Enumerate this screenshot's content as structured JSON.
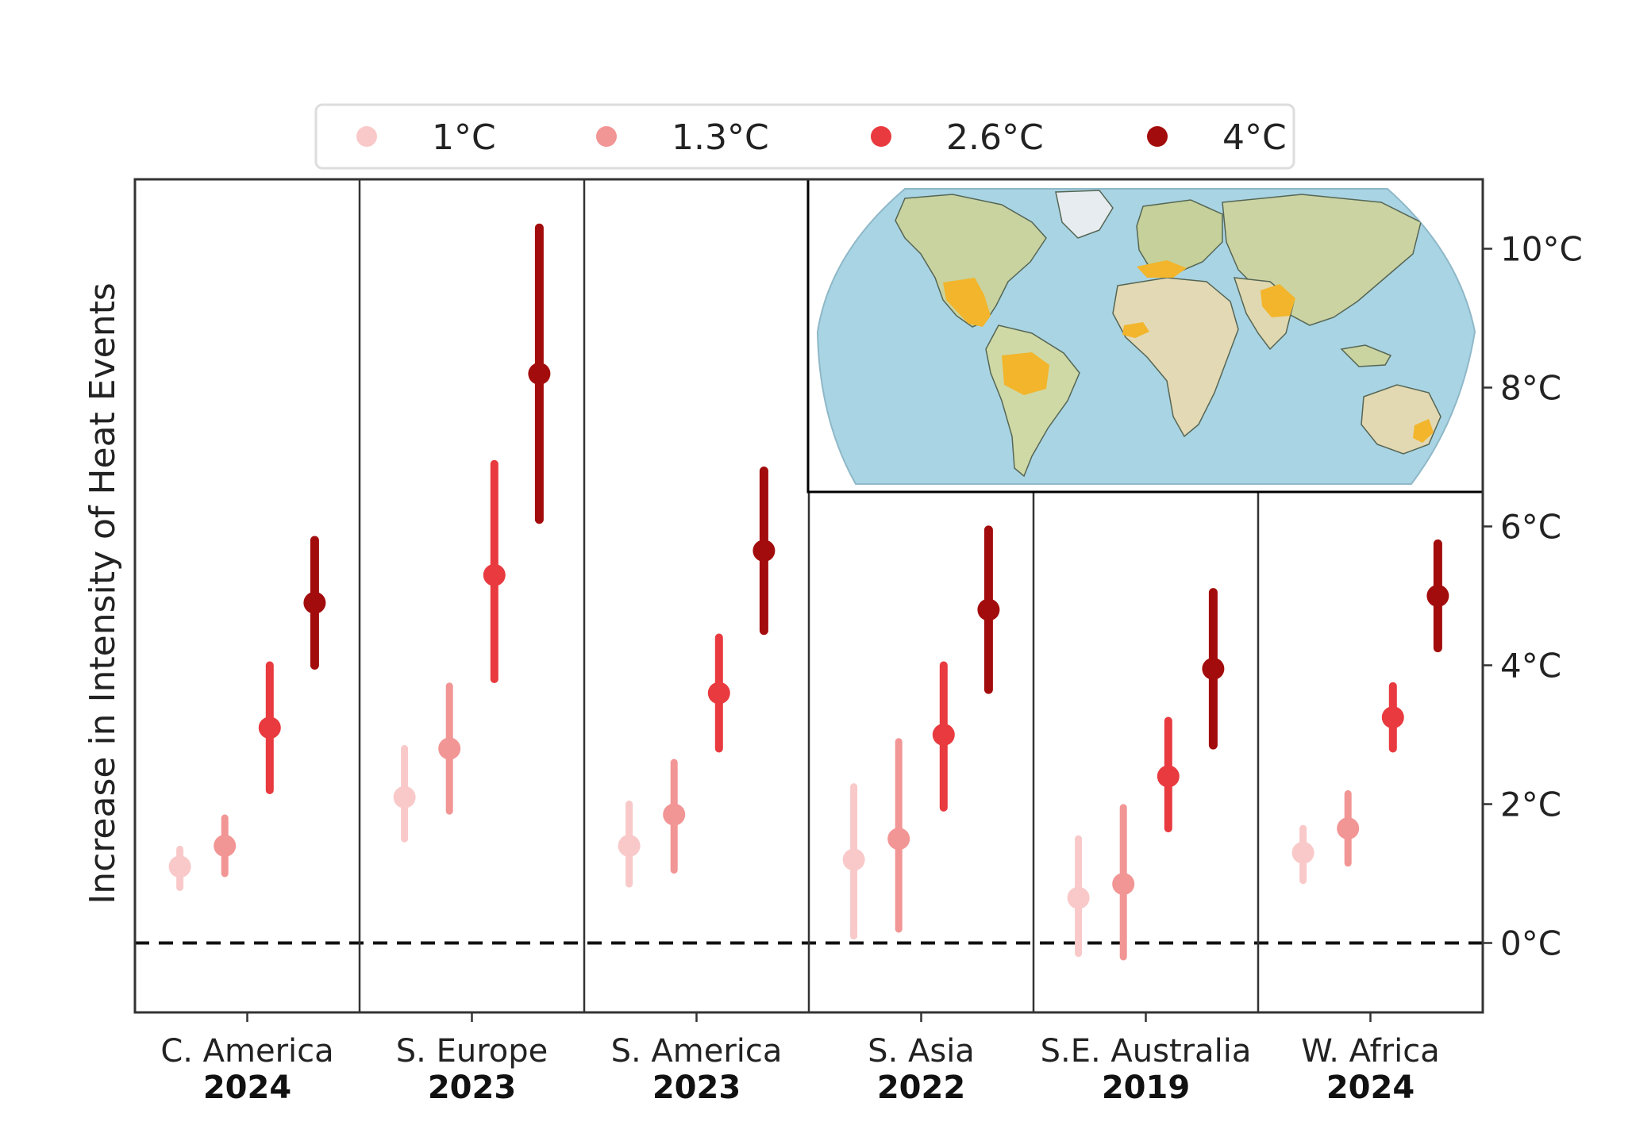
{
  "chart_data": {
    "type": "errorbar",
    "title": "",
    "ylabel": "Increase in Intensity of Heat Events",
    "xlabel": "",
    "ylim": [
      -1,
      11
    ],
    "yticks": [
      0,
      2,
      4,
      6,
      8,
      10
    ],
    "ytick_labels": [
      "0°C",
      "2°C",
      "4°C",
      "6°C",
      "8°C",
      "10°C"
    ],
    "reference_line": 0,
    "legend_position": "top-center",
    "inset": "world-map-highlighting-event-regions",
    "series": [
      {
        "name": "1°C",
        "color": "#f9c9c9"
      },
      {
        "name": "1.3°C",
        "color": "#f29595"
      },
      {
        "name": "2.6°C",
        "color": "#e83a3f"
      },
      {
        "name": "4°C",
        "color": "#a30c0c"
      }
    ],
    "categories": [
      {
        "region": "C. America",
        "year": "2024",
        "values": [
          {
            "mid": 1.1,
            "low": 0.8,
            "high": 1.35
          },
          {
            "mid": 1.4,
            "low": 1.0,
            "high": 1.8
          },
          {
            "mid": 3.1,
            "low": 2.2,
            "high": 4.0
          },
          {
            "mid": 4.9,
            "low": 4.0,
            "high": 5.8
          }
        ]
      },
      {
        "region": "S. Europe",
        "year": "2023",
        "values": [
          {
            "mid": 2.1,
            "low": 1.5,
            "high": 2.8
          },
          {
            "mid": 2.8,
            "low": 1.9,
            "high": 3.7
          },
          {
            "mid": 5.3,
            "low": 3.8,
            "high": 6.9
          },
          {
            "mid": 8.2,
            "low": 6.1,
            "high": 10.3
          }
        ]
      },
      {
        "region": "S. America",
        "year": "2023",
        "values": [
          {
            "mid": 1.4,
            "low": 0.85,
            "high": 2.0
          },
          {
            "mid": 1.85,
            "low": 1.05,
            "high": 2.6
          },
          {
            "mid": 3.6,
            "low": 2.8,
            "high": 4.4
          },
          {
            "mid": 5.65,
            "low": 4.5,
            "high": 6.8
          }
        ]
      },
      {
        "region": "S. Asia",
        "year": "2022",
        "values": [
          {
            "mid": 1.2,
            "low": 0.1,
            "high": 2.25
          },
          {
            "mid": 1.5,
            "low": 0.2,
            "high": 2.9
          },
          {
            "mid": 3.0,
            "low": 1.95,
            "high": 4.0
          },
          {
            "mid": 4.8,
            "low": 3.65,
            "high": 5.95
          }
        ]
      },
      {
        "region": "S.E. Australia",
        "year": "2019",
        "values": [
          {
            "mid": 0.65,
            "low": -0.15,
            "high": 1.5
          },
          {
            "mid": 0.85,
            "low": -0.2,
            "high": 1.95
          },
          {
            "mid": 2.4,
            "low": 1.65,
            "high": 3.2
          },
          {
            "mid": 3.95,
            "low": 2.85,
            "high": 5.05
          }
        ]
      },
      {
        "region": "W. Africa",
        "year": "2024",
        "values": [
          {
            "mid": 1.3,
            "low": 0.9,
            "high": 1.65
          },
          {
            "mid": 1.65,
            "low": 1.15,
            "high": 2.15
          },
          {
            "mid": 3.25,
            "low": 2.8,
            "high": 3.7
          },
          {
            "mid": 5.0,
            "low": 4.25,
            "high": 5.75
          }
        ]
      }
    ]
  }
}
